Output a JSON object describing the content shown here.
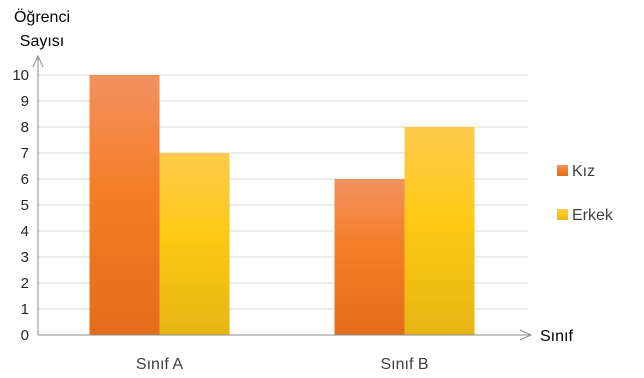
{
  "chart_data": {
    "type": "bar",
    "title": "",
    "xlabel": "Sınıf",
    "ylabel_lines": [
      "Öğrenci",
      "Sayısı"
    ],
    "categories": [
      "Sınıf A",
      "Sınıf B"
    ],
    "series": [
      {
        "name": "Kız",
        "values": [
          10,
          6
        ],
        "color": "#f07c2a"
      },
      {
        "name": "Erkek",
        "values": [
          7,
          8
        ],
        "color": "#fcbf14"
      }
    ],
    "ylim": [
      0,
      10
    ],
    "yticks": [
      0,
      1,
      2,
      3,
      4,
      5,
      6,
      7,
      8,
      9,
      10
    ],
    "grid": true,
    "legend_position": "right"
  }
}
